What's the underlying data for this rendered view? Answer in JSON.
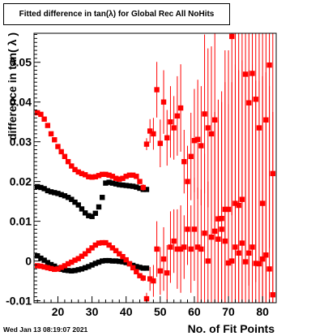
{
  "footer": {
    "timestamp": "Wed Jan 13 08:19:07 2021"
  },
  "chart_data": {
    "type": "scatter",
    "title": "Fitted difference in tan(λ) for Global Rec All NoHits",
    "xlabel": "No. of Fit Points",
    "ylabel": "difference in tan( λ )",
    "xlim": [
      13,
      84
    ],
    "ylim": [
      -0.0105,
      0.0573
    ],
    "xticks": [
      20,
      30,
      40,
      50,
      60,
      70,
      80
    ],
    "xtick_labels": [
      "20",
      "30",
      "40",
      "50",
      "60",
      "70",
      "80"
    ],
    "yticks": [
      -0.01,
      0,
      0.01,
      0.02,
      0.03,
      0.04,
      0.05
    ],
    "ytick_labels": [
      "-0.01",
      "0",
      "0.01",
      "0.02",
      "0.03",
      "0.04",
      "0.05"
    ],
    "grid": false,
    "legend": "none",
    "series": [
      {
        "color": "#000000",
        "marker": "square",
        "x": [
          14,
          15,
          16,
          17,
          18,
          19,
          20,
          21,
          22,
          23,
          24,
          25,
          26,
          27,
          28,
          29,
          30,
          31,
          32,
          33,
          34,
          35,
          36,
          37,
          38,
          39,
          40,
          41,
          42,
          43,
          44,
          45,
          46
        ],
        "y": [
          0.0187,
          0.0185,
          0.0182,
          0.0177,
          0.0174,
          0.0172,
          0.017,
          0.0167,
          0.0164,
          0.016,
          0.0155,
          0.0148,
          0.0141,
          0.0131,
          0.0121,
          0.0114,
          0.0112,
          0.012,
          0.0136,
          0.016,
          0.0196,
          0.0198,
          0.0196,
          0.0194,
          0.0192,
          0.0191,
          0.019,
          0.0189,
          0.0188,
          0.0186,
          0.0183,
          0.018,
          0.018
        ],
        "yerr": [
          0.0003,
          0.0003,
          0.0003,
          0.0003,
          0.0003,
          0.0003,
          0.0003,
          0.0003,
          0.0003,
          0.0003,
          0.0003,
          0.0003,
          0.0003,
          0.0003,
          0.0003,
          0.0003,
          0.0003,
          0.0003,
          0.0003,
          0.0003,
          0.0003,
          0.0003,
          0.0003,
          0.0003,
          0.0003,
          0.0003,
          0.0003,
          0.0003,
          0.0004,
          0.0004,
          0.0004,
          0.0005,
          0.0005
        ]
      },
      {
        "color": "#000000",
        "marker": "square",
        "x": [
          14,
          15,
          16,
          17,
          18,
          19,
          20,
          21,
          22,
          23,
          24,
          25,
          26,
          27,
          28,
          29,
          30,
          31,
          32,
          33,
          34,
          35,
          36,
          37,
          38,
          39,
          40,
          41,
          42,
          43,
          44,
          45,
          46
        ],
        "y": [
          0.0013,
          0.0007,
          0.0002,
          -0.0004,
          -0.0009,
          -0.0013,
          -0.0018,
          -0.0021,
          -0.0023,
          -0.0024,
          -0.0025,
          -0.0024,
          -0.0022,
          -0.002,
          -0.0017,
          -0.0014,
          -0.001,
          -0.0006,
          -0.0003,
          0.0,
          0.0001,
          0.0001,
          0.0,
          0.0,
          -0.0001,
          -0.0002,
          -0.0004,
          -0.0007,
          -0.0011,
          -0.0014,
          -0.0016,
          -0.0018,
          -0.0018
        ],
        "yerr": [
          0.0003,
          0.0003,
          0.0003,
          0.0003,
          0.0003,
          0.0003,
          0.0003,
          0.0003,
          0.0003,
          0.0003,
          0.0003,
          0.0003,
          0.0003,
          0.0003,
          0.0003,
          0.0003,
          0.0003,
          0.0003,
          0.0003,
          0.0003,
          0.0003,
          0.0003,
          0.0003,
          0.0003,
          0.0003,
          0.0003,
          0.0003,
          0.0003,
          0.0004,
          0.0004,
          0.0004,
          0.0005,
          0.0005
        ]
      },
      {
        "color": "#ff0000",
        "marker": "square",
        "x": [
          14,
          15,
          16,
          17,
          18,
          19,
          20,
          21,
          22,
          23,
          24,
          25,
          26,
          27,
          28,
          29,
          30,
          31,
          32,
          33,
          34,
          35,
          36,
          37,
          38,
          39,
          40,
          41,
          42,
          43,
          44,
          45,
          46,
          47,
          48,
          49,
          50,
          51,
          52,
          53,
          54,
          55,
          56,
          57,
          58,
          59,
          60,
          61,
          62,
          63,
          64,
          65,
          66,
          67,
          68,
          69,
          70,
          71,
          72,
          73,
          74,
          75,
          76,
          77,
          78,
          79,
          80,
          81,
          82,
          83
        ],
        "y": [
          0.0373,
          0.0369,
          0.0357,
          0.0341,
          0.032,
          0.0305,
          0.0288,
          0.0275,
          0.0263,
          0.025,
          0.0239,
          0.023,
          0.0224,
          0.022,
          0.0217,
          0.0212,
          0.0211,
          0.0212,
          0.0215,
          0.0218,
          0.0218,
          0.0216,
          0.0213,
          0.0208,
          0.0206,
          0.0208,
          0.0213,
          0.0216,
          0.0216,
          0.0213,
          0.02,
          0.0185,
          0.0294,
          0.0327,
          0.032,
          0.0431,
          0.0296,
          0.04,
          0.031,
          0.035,
          0.0335,
          0.0365,
          0.0385,
          0.025,
          0.02,
          0.0263,
          0.0303,
          0.0306,
          0.029,
          0.037,
          0.0335,
          0.032,
          0.0355,
          0.0106,
          0.0107,
          0.013,
          0.013,
          0.0565,
          0.0145,
          0.014,
          0.0155,
          0.047,
          0.0398,
          0.0472,
          0.0407,
          0.0335,
          0.0145,
          0.0355,
          0.0493,
          0.022
        ],
        "yerr": [
          0.0003,
          0.0003,
          0.0003,
          0.0003,
          0.0003,
          0.0003,
          0.0003,
          0.0003,
          0.0003,
          0.0003,
          0.0003,
          0.0003,
          0.0003,
          0.0003,
          0.0003,
          0.0003,
          0.0003,
          0.0003,
          0.0003,
          0.0003,
          0.0003,
          0.0003,
          0.0003,
          0.0003,
          0.0003,
          0.0003,
          0.0003,
          0.0003,
          0.0004,
          0.0005,
          0.0006,
          0.0008,
          0.0015,
          0.003,
          0.004,
          0.007,
          0.006,
          0.008,
          0.007,
          0.009,
          0.008,
          0.01,
          0.011,
          0.008,
          0.009,
          0.011,
          0.013,
          0.015,
          0.015,
          0.02,
          0.02,
          0.022,
          0.03,
          0.03,
          0.032,
          0.04,
          0.04,
          0.045,
          0.046,
          0.046,
          0.046,
          0.046,
          0.046,
          0.046,
          0.046,
          0.046,
          0.046,
          0.046,
          0.046,
          0.046
        ]
      },
      {
        "color": "#ff0000",
        "marker": "square",
        "x": [
          14,
          15,
          16,
          17,
          18,
          19,
          20,
          21,
          22,
          23,
          24,
          25,
          26,
          27,
          28,
          29,
          30,
          31,
          32,
          33,
          34,
          35,
          36,
          37,
          38,
          39,
          40,
          41,
          42,
          43,
          44,
          45,
          46,
          47,
          48,
          49,
          50,
          51,
          52,
          53,
          54,
          55,
          56,
          57,
          58,
          59,
          60,
          61,
          62,
          63,
          64,
          65,
          66,
          67,
          68,
          69,
          70,
          71,
          72,
          73,
          74,
          75,
          76,
          77,
          78,
          79,
          80,
          81,
          82,
          83
        ],
        "y": [
          -0.0012,
          -0.0013,
          -0.0015,
          -0.0017,
          -0.0019,
          -0.0021,
          -0.002,
          -0.0016,
          -0.0012,
          -0.0007,
          -0.0003,
          0.0002,
          0.0006,
          0.0012,
          0.0018,
          0.0026,
          0.0033,
          0.004,
          0.0045,
          0.0046,
          0.0046,
          0.004,
          0.0033,
          0.0026,
          0.0018,
          0.0011,
          0.0003,
          -0.0007,
          -0.0017,
          -0.0027,
          -0.0037,
          -0.0043,
          -0.0095,
          -0.0045,
          -0.005,
          0.003,
          -0.0025,
          0.0005,
          -0.003,
          0.0035,
          0.005,
          0.003,
          0.003,
          0.0035,
          0.008,
          0.003,
          0.008,
          0.0035,
          0.003,
          0.007,
          0.0,
          0.006,
          0.0075,
          0.0055,
          0.008,
          0.005,
          -0.0005,
          0.0,
          0.0035,
          0.002,
          0.0045,
          -0.0002,
          0.002,
          0.0035,
          -0.0006,
          -0.0007,
          0.0005,
          0.0015,
          -0.002,
          -0.0085
        ],
        "yerr": [
          0.0003,
          0.0003,
          0.0003,
          0.0003,
          0.0003,
          0.0003,
          0.0003,
          0.0003,
          0.0003,
          0.0003,
          0.0003,
          0.0003,
          0.0003,
          0.0003,
          0.0003,
          0.0003,
          0.0003,
          0.0003,
          0.0003,
          0.0003,
          0.0003,
          0.0003,
          0.0003,
          0.0003,
          0.0003,
          0.0003,
          0.0003,
          0.0003,
          0.0004,
          0.0005,
          0.0006,
          0.0008,
          0.0015,
          0.003,
          0.004,
          0.007,
          0.006,
          0.008,
          0.007,
          0.009,
          0.008,
          0.01,
          0.011,
          0.008,
          0.009,
          0.011,
          0.013,
          0.015,
          0.015,
          0.02,
          0.02,
          0.022,
          0.03,
          0.03,
          0.032,
          0.04,
          0.04,
          0.045,
          0.046,
          0.046,
          0.046,
          0.046,
          0.046,
          0.046,
          0.046,
          0.046,
          0.046,
          0.046,
          0.046,
          0.046
        ]
      }
    ]
  }
}
